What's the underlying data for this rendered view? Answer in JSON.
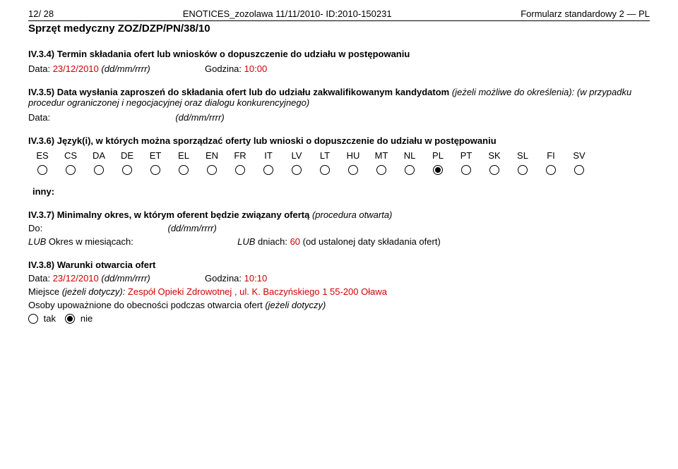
{
  "header": {
    "left": "12/ 28",
    "center": "ENOTICES_zozolawa 11/11/2010- ID:2010-150231",
    "right": "Formularz standardowy 2 — PL",
    "subtitle": "Sprzęt medyczny ZOZ/DZP/PN/38/10"
  },
  "s34": {
    "title": "IV.3.4) Termin składania ofert lub wniosków o dopuszczenie do udziału w postępowaniu",
    "data_label": "Data:",
    "data_value": "23/12/2010",
    "data_fmt": "(dd/mm/rrrr)",
    "godz_label": "Godzina:",
    "godz_value": "10:00"
  },
  "s35": {
    "title_prefix": "IV.3.5) Data wysłania zaproszeń do składania ofert lub do udziału zakwalifikowanym kandydatom",
    "title_italic": "(jeżeli możliwe do określenia): (w przypadku procedur ograniczonej i negocjacyjnej oraz dialogu konkurencyjnego)",
    "data_label": "Data:",
    "data_fmt": "(dd/mm/rrrr)"
  },
  "s36": {
    "title": "IV.3.6) Język(i), w których można sporządzać oferty lub wnioski o dopuszczenie do udziału w postępowaniu",
    "langs": [
      "ES",
      "CS",
      "DA",
      "DE",
      "ET",
      "EL",
      "EN",
      "FR",
      "IT",
      "LV",
      "LT",
      "HU",
      "MT",
      "NL",
      "PL",
      "PT",
      "SK",
      "SL",
      "FI",
      "SV"
    ],
    "selected_index": 14,
    "inny": "inny:"
  },
  "s37": {
    "title_prefix": "IV.3.7) Minimalny okres, w którym oferent będzie związany ofertą",
    "title_italic": "(procedura otwarta)",
    "do_label": "Do:",
    "do_fmt": "(dd/mm/rrrr)",
    "lub_label": "LUB",
    "okres_label": "Okres w miesiącach:",
    "dniach_label": "dniach:",
    "dni_value": "60",
    "od_label": "(od ustalonej daty składania ofert)"
  },
  "s38": {
    "title": "IV.3.8) Warunki otwarcia ofert",
    "data_label": "Data:",
    "data_value": "23/12/2010",
    "data_fmt": "(dd/mm/rrrr)",
    "godz_label": "Godzina:",
    "godz_value": "10:10",
    "miejsce_label": "Miejsce",
    "miejsce_italic": "(jeżeli dotyczy):",
    "miejsce_value": "Zespół Opieki Zdrowotnej , ul. K. Baczyńskiego 1 55-200 Oława",
    "osoby": "Osoby upoważnione do obecności podczas otwarcia ofert",
    "osoby_italic": "(jeżeli dotyczy)",
    "tak": "tak",
    "nie": "nie"
  }
}
